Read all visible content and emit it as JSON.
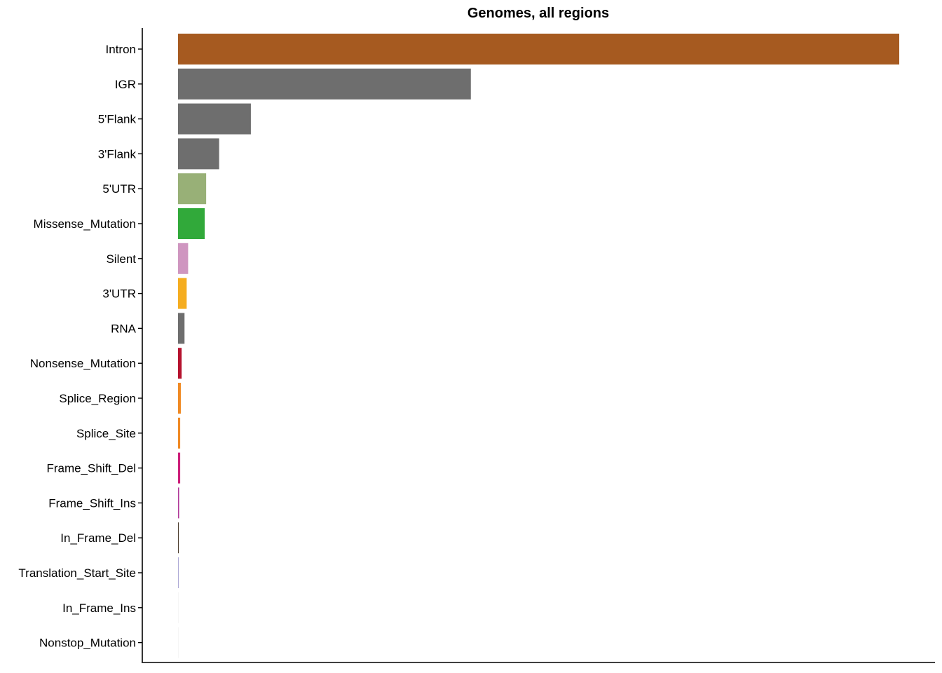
{
  "chart_data": {
    "type": "bar",
    "orientation": "horizontal",
    "title": "Genomes, all regions",
    "xlabel": "",
    "ylabel": "",
    "x_tick_labels_shown": false,
    "grid": false,
    "legend": "none",
    "xlim": [
      0,
      100
    ],
    "categories": [
      "Intron",
      "IGR",
      "5'Flank",
      "3'Flank",
      "5'UTR",
      "Missense_Mutation",
      "Silent",
      "3'UTR",
      "RNA",
      "Nonsense_Mutation",
      "Splice_Region",
      "Splice_Site",
      "Frame_Shift_Del",
      "Frame_Shift_Ins",
      "In_Frame_Del",
      "Translation_Start_Site",
      "In_Frame_Ins",
      "Nonstop_Mutation"
    ],
    "values": [
      100,
      40.6,
      10.1,
      5.7,
      3.9,
      3.7,
      1.4,
      1.2,
      0.9,
      0.5,
      0.4,
      0.3,
      0.3,
      0.15,
      0.1,
      0.08,
      0.04,
      0.03
    ],
    "colors": [
      "#a65a20",
      "#6e6e6e",
      "#6e6e6e",
      "#6e6e6e",
      "#98b077",
      "#31a93a",
      "#cf96c0",
      "#f5ad20",
      "#6e6e6e",
      "#b5122e",
      "#f08a24",
      "#f08a24",
      "#cc1f7a",
      "#b13a9a",
      "#4a3b2c",
      "#9b96cc",
      "#eeeeee",
      "#eeeeee"
    ]
  }
}
